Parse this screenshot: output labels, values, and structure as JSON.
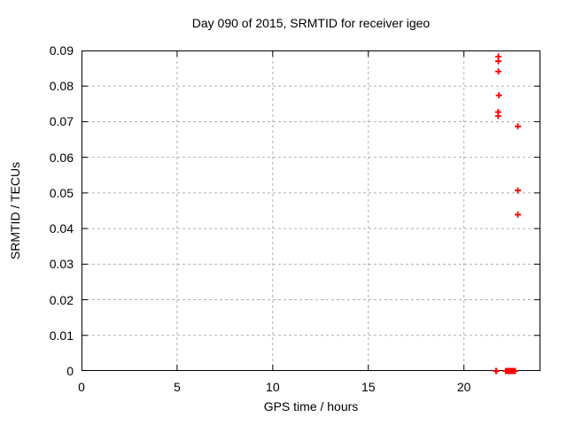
{
  "chart_data": {
    "type": "scatter",
    "title": "Day 090 of 2015, SRMTID for receiver igeo",
    "xlabel": "GPS time / hours",
    "ylabel": "SRMTID / TECUs",
    "xlim": [
      0,
      24
    ],
    "ylim": [
      0,
      0.09
    ],
    "xticks": [
      0,
      5,
      10,
      15,
      20
    ],
    "xtick_labels": [
      "0",
      "5",
      "10",
      "15",
      "20"
    ],
    "yticks": [
      0,
      0.01,
      0.02,
      0.03,
      0.04,
      0.05,
      0.06,
      0.07,
      0.08,
      0.09
    ],
    "ytick_labels": [
      "0",
      "0.01",
      "0.02",
      "0.03",
      "0.04",
      "0.05",
      "0.06",
      "0.07",
      "0.08",
      "0.09"
    ],
    "grid": true,
    "legend": "none",
    "marker": "plus",
    "series": [
      {
        "name": "SRMTID",
        "points": [
          [
            21.8,
            0.0883
          ],
          [
            21.8,
            0.087
          ],
          [
            21.8,
            0.0841
          ],
          [
            21.83,
            0.0774
          ],
          [
            21.79,
            0.0727
          ],
          [
            21.79,
            0.0716
          ],
          [
            22.82,
            0.0687
          ],
          [
            22.82,
            0.0507
          ],
          [
            22.82,
            0.0439
          ],
          [
            21.67,
            0.0
          ],
          [
            21.7,
            0.0
          ],
          [
            22.18,
            0.0
          ],
          [
            22.2,
            0.0
          ],
          [
            22.22,
            0.0
          ],
          [
            22.24,
            0.0
          ],
          [
            22.26,
            0.0
          ],
          [
            22.28,
            0.0
          ],
          [
            22.3,
            0.0
          ],
          [
            22.32,
            0.0
          ],
          [
            22.34,
            0.0
          ],
          [
            22.36,
            0.0
          ],
          [
            22.38,
            0.0
          ],
          [
            22.4,
            0.0
          ],
          [
            22.42,
            0.0
          ],
          [
            22.44,
            0.0
          ],
          [
            22.46,
            0.0
          ],
          [
            22.48,
            0.0
          ],
          [
            22.5,
            0.0
          ],
          [
            22.52,
            0.0
          ],
          [
            22.54,
            0.0
          ],
          [
            22.56,
            0.0
          ],
          [
            22.58,
            0.0
          ],
          [
            22.6,
            0.0
          ],
          [
            22.62,
            0.0
          ],
          [
            22.64,
            0.0
          ],
          [
            22.66,
            0.0
          ],
          [
            22.68,
            0.0
          ]
        ]
      }
    ]
  },
  "colors": {
    "marker": "#ff0000",
    "grid": "#b0b0b0",
    "axis": "#000000",
    "background": "#ffffff"
  }
}
